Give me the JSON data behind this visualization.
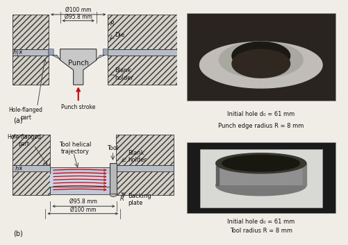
{
  "fig_bg": "#f0ece6",
  "diag_bg": "#f0ece6",
  "photo_bg_top": "#3a2e28",
  "photo_bg_bot": "#1a1a1a",
  "hatch_face": "#d4d0c8",
  "punch_face": "#c8c8c8",
  "sheet_face": "#b8bcc4",
  "flange_face": "#c0c8d8",
  "tool_face": "#b8b8b8",
  "line_col": "#333333",
  "red_col": "#cc0000",
  "text_col": "#111111",
  "photo1_text1": "Initial hole d₀ = 61 mm",
  "photo1_text2": "Punch edge radius R = 8 mm",
  "photo2_text1": "Initial hole d₀ = 61 mm",
  "photo2_text2": "Tool radius R = 8 mm",
  "label_punch": "Punch",
  "label_punch_stroke": "Punch stroke",
  "label_die": "Die",
  "label_blank_holder": "Blank\nholder",
  "label_hole_flanged_a": "Hole-flanged\npart",
  "label_hole_flanged_b": "Hole-flanged\npart",
  "label_tool_traj": "Tool helical\ntrajectory",
  "label_tool": "Tool",
  "label_backing": "Backing\nplate",
  "label_h": "h",
  "label_R": "R",
  "dim_100_top": "Ø100 mm",
  "dim_958_top": "Ø95.8 mm",
  "dim_958_bot": "Ø95.8 mm",
  "dim_100_bot": "Ø100 mm"
}
